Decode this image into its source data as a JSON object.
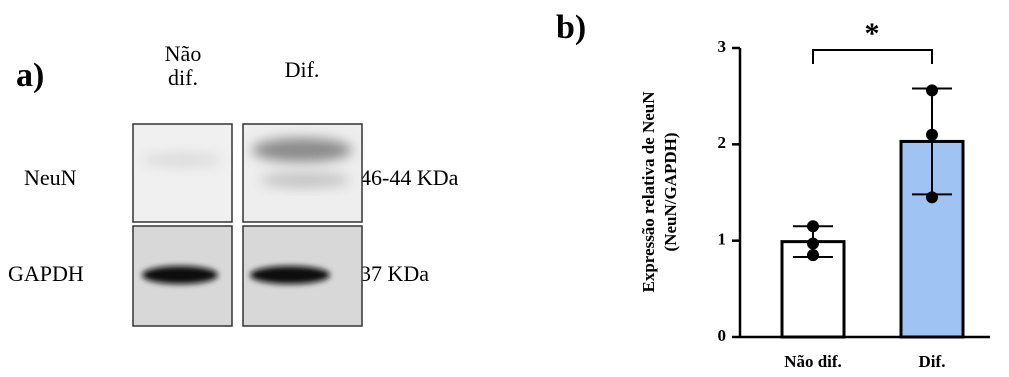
{
  "panel_a": {
    "label": "a)",
    "columns": [
      [
        "Não",
        "dif."
      ],
      [
        "Dif."
      ]
    ],
    "rows": [
      {
        "name": "NeuN",
        "size": "46-44  KDa"
      },
      {
        "name": "GAPDH",
        "size": "37 KDa"
      }
    ]
  },
  "chart_data": {
    "type": "bar",
    "panel_label": "b)",
    "ylabel": [
      "Expressão relativa de NeuN",
      "(NeuN/GAPDH)"
    ],
    "categories": [
      "Não dif.",
      "Dif."
    ],
    "values": [
      0.99,
      2.03
    ],
    "errors": [
      0.16,
      0.55
    ],
    "points": [
      [
        1.15,
        0.97,
        0.85
      ],
      [
        2.56,
        2.1,
        1.45
      ]
    ],
    "colors": [
      "#ffffff",
      "#9fc4f3"
    ],
    "ylim": [
      0,
      3
    ],
    "yticks": [
      0,
      1,
      2,
      3
    ],
    "significance": "*"
  }
}
